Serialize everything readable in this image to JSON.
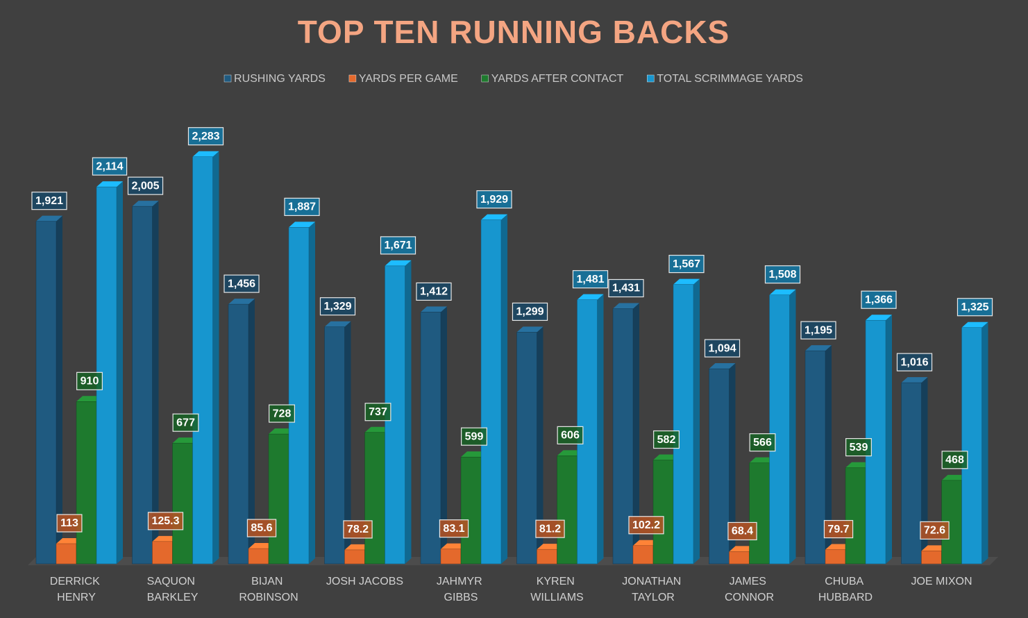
{
  "chart_data": {
    "type": "bar3d",
    "title": "TOP TEN RUNNING BACKS",
    "categories": [
      "DERRICK HENRY",
      "SAQUON BARKLEY",
      "BIJAN ROBINSON",
      "JOSH JACOBS",
      "JAHMYR GIBBS",
      "KYREN WILLIAMS",
      "JONATHAN TAYLOR",
      "JAMES CONNOR",
      "CHUBA HUBBARD",
      "JOE MIXON"
    ],
    "series": [
      {
        "name": "RUSHING YARDS",
        "color": "#1f5a80",
        "values": [
          1921,
          2005,
          1456,
          1329,
          1412,
          1299,
          1431,
          1094,
          1195,
          1016
        ],
        "value_labels": [
          "1,921",
          "2,005",
          "1,456",
          "1,329",
          "1,412",
          "1,299",
          "1,431",
          "1,094",
          "1,195",
          "1,016"
        ]
      },
      {
        "name": "YARDS PER GAME",
        "color": "#e4692c",
        "values": [
          113,
          125.3,
          85.6,
          78.2,
          83.1,
          81.2,
          102.2,
          68.4,
          79.7,
          72.6
        ]
      },
      {
        "name": "YARDS AFTER CONTACT",
        "color": "#1e7a2e",
        "values": [
          910,
          677,
          728,
          737,
          599,
          606,
          582,
          566,
          539,
          468
        ]
      },
      {
        "name": "TOTAL SCRIMMAGE YARDS",
        "color": "#1796cf",
        "values": [
          2114,
          2283,
          1887,
          1671,
          1929,
          1481,
          1567,
          1508,
          1366,
          1325
        ],
        "value_labels": [
          "2,114",
          "2,283",
          "1,887",
          "1,671",
          "1,929",
          "1,481",
          "1,567",
          "1,508",
          "1,366",
          "1,325"
        ]
      }
    ],
    "ylim": [
      0,
      2500
    ],
    "legend": "top"
  }
}
